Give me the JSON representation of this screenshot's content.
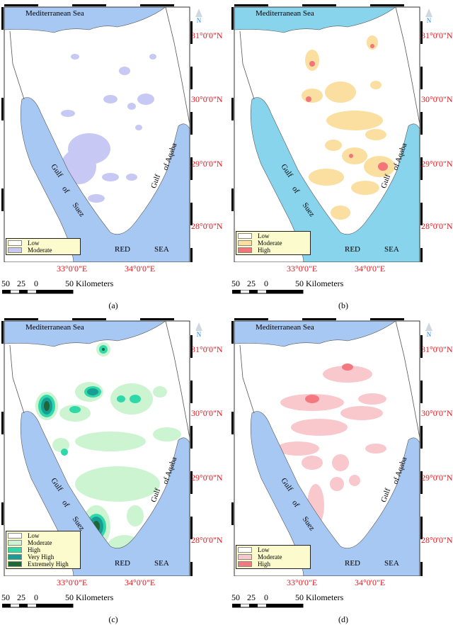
{
  "labels": {
    "sea_north": "Mediterranean Sea",
    "gulf_suez": [
      "Gulf",
      "of",
      "Suez"
    ],
    "gulf_aqaba": [
      "Gulf",
      "of Aqaba"
    ],
    "red": "RED",
    "sea": "SEA",
    "north": "N",
    "lat": [
      "31°0'0\"N",
      "30°0'0\"N",
      "29°0'0\"N",
      "28°0'0\"N"
    ],
    "lon": [
      "33°0'0\"E",
      "34°0'0\"E"
    ],
    "scale": [
      "50",
      "25",
      "0",
      "50 Kilometers"
    ]
  },
  "panels": [
    {
      "caption": "(a)",
      "sea_color": "#a8c8f4",
      "legend": [
        {
          "label": "Low",
          "color": "#ffffff"
        },
        {
          "label": "Moderate",
          "color": "#c8c8f4"
        }
      ]
    },
    {
      "caption": "(b)",
      "sea_color": "#88d4ec",
      "legend": [
        {
          "label": "Low",
          "color": "#ffffff"
        },
        {
          "label": "Moderate",
          "color": "#fbdfa0"
        },
        {
          "label": "High",
          "color": "#f4747c"
        }
      ]
    },
    {
      "caption": "(c)",
      "sea_color": "#a8c8f4",
      "legend": [
        {
          "label": "Low",
          "color": "#ffffff"
        },
        {
          "label": "Moderate",
          "color": "#ccf4d0"
        },
        {
          "label": "High",
          "color": "#2ed8a8"
        },
        {
          "label": "Very High",
          "color": "#189c94"
        },
        {
          "label": "Extremely High",
          "color": "#1c6838"
        }
      ]
    },
    {
      "caption": "(d)",
      "sea_color": "#a8c8f4",
      "legend": [
        {
          "label": "Low",
          "color": "#ffffff"
        },
        {
          "label": "Moderate",
          "color": "#f8c8cc"
        },
        {
          "label": "High",
          "color": "#f47880"
        }
      ]
    }
  ]
}
